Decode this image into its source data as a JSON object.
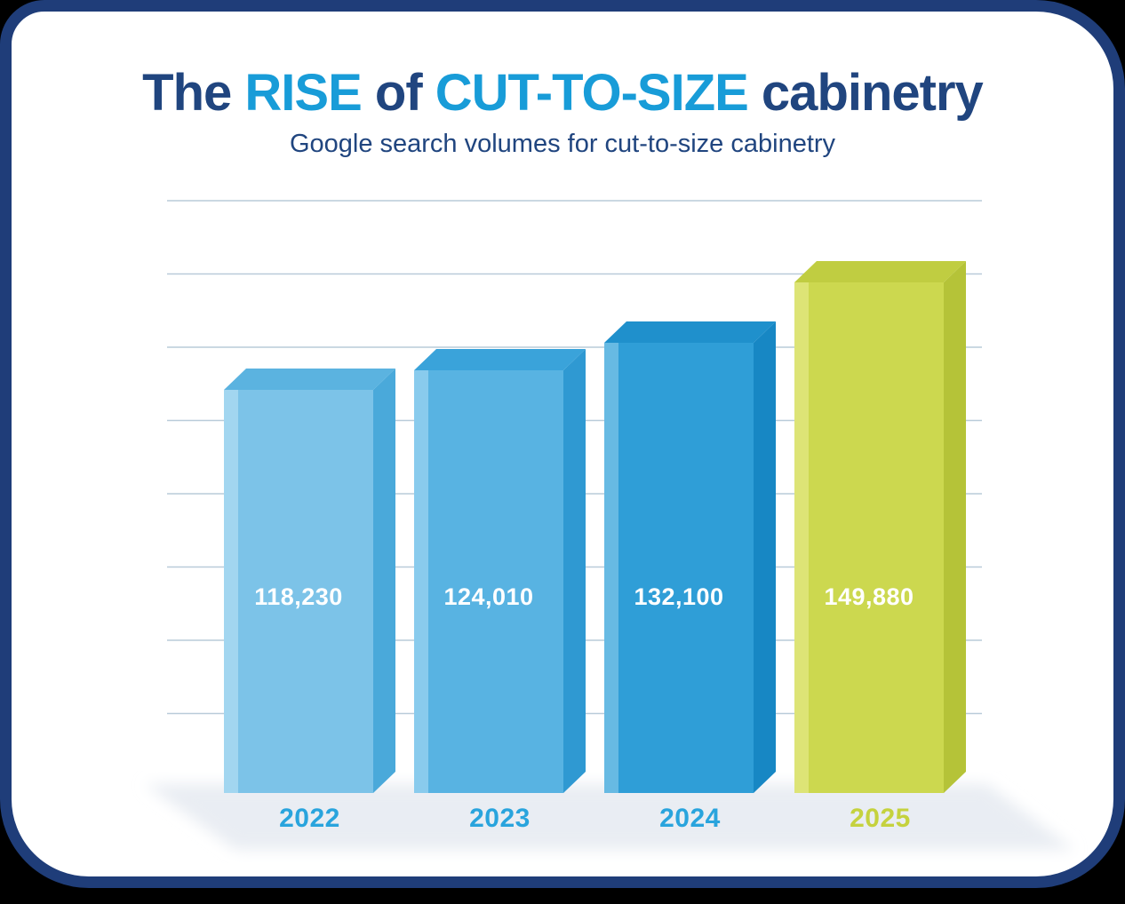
{
  "palette": {
    "navy": "#20457f",
    "blue": "#189cd8",
    "frame_border": "#1f3d79",
    "card_background": "#ffffff",
    "outer_background": "#000000",
    "gridline_color": "#b9cbd9",
    "shadow_color": "#e9edf3"
  },
  "title": {
    "parts": [
      {
        "text": "The ",
        "style": "navy"
      },
      {
        "text": "RISE",
        "style": "blue"
      },
      {
        "text": " of ",
        "style": "navy"
      },
      {
        "text": "CUT-TO-SIZE",
        "style": "blue"
      },
      {
        "text": " cabinetry",
        "style": "navy"
      }
    ],
    "subtitle": "Google search volumes for cut-to-size cabinetry"
  },
  "chart_data": {
    "type": "bar",
    "title": "The RISE of CUT-TO-SIZE cabinetry",
    "subtitle": "Google search volumes for cut-to-size cabinetry",
    "xlabel": "",
    "ylabel": "",
    "legend": "none",
    "grid": true,
    "gridline_count": 8,
    "categories": [
      "2022",
      "2023",
      "2024",
      "2025"
    ],
    "values": [
      118230,
      124010,
      132100,
      149880
    ],
    "value_labels": [
      "118,230",
      "124,010",
      "132,100",
      "149,880"
    ],
    "value_label_color": "#ffffff",
    "bars": [
      {
        "front": "#7cc3e8",
        "top": "#5bb3e0",
        "side": "#4aa9da",
        "highlight": "#a6d8f1",
        "year_label_color": "#29a4dd"
      },
      {
        "front": "#58b3e2",
        "top": "#3aa3da",
        "side": "#2f99d2",
        "highlight": "#8fcdee",
        "year_label_color": "#29a4dd"
      },
      {
        "front": "#2f9ed7",
        "top": "#1f90cc",
        "side": "#1787c4",
        "highlight": "#6ebde4",
        "year_label_color": "#29a4dd"
      },
      {
        "front": "#ccd84f",
        "top": "#c0cd41",
        "side": "#b5c338",
        "highlight": "#dfe57a",
        "year_label_color": "#c5d23e"
      }
    ]
  }
}
